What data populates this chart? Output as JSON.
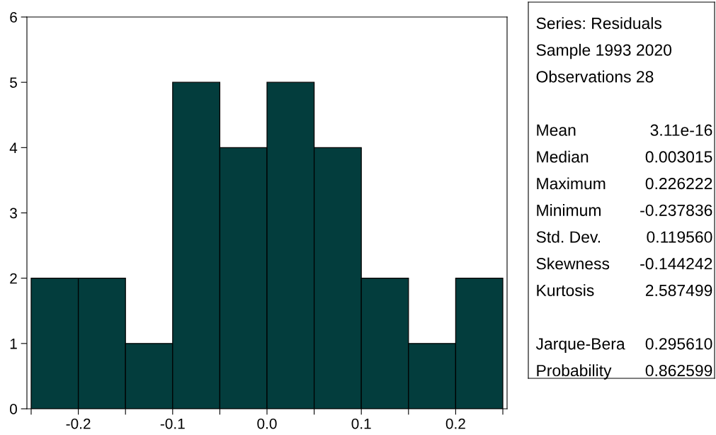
{
  "chart_data": {
    "type": "histogram",
    "color": "#033d3d",
    "bins": [
      -0.25,
      -0.2,
      -0.15,
      -0.1,
      -0.05,
      0.0,
      0.05,
      0.1,
      0.15,
      0.2,
      0.25
    ],
    "values": [
      2,
      2,
      1,
      5,
      4,
      5,
      4,
      2,
      1,
      2
    ],
    "xlim": [
      -0.2545,
      0.2545
    ],
    "xticks": [
      {
        "value": -0.25,
        "label": null
      },
      -0.2,
      {
        "value": -0.15,
        "label": null
      },
      -0.1,
      {
        "value": -0.05,
        "label": null
      },
      {
        "value": 0,
        "label": "0.0"
      },
      {
        "value": 0.05,
        "label": null
      },
      0.1,
      {
        "value": 0.15,
        "label": null
      },
      0.2,
      {
        "value": 0.25,
        "label": null
      }
    ],
    "ylim": [
      0,
      6
    ],
    "yticks": [
      0,
      1,
      2,
      3,
      4,
      5,
      6
    ],
    "grid": false,
    "annotations": [
      "Series: Residuals",
      "Sample 1993 2020",
      "Observations 28",
      "Mean",
      "3.11e-16",
      "Median",
      "0.003015",
      "Maximum",
      "0.226222",
      "Minimum",
      "-0.237836",
      "Std. Dev.",
      "0.119560",
      "Skewness",
      "-0.144242",
      "Kurtosis",
      "2.587499",
      "Jarque-Bera",
      "0.295610",
      "Probability",
      "0.862599"
    ]
  }
}
